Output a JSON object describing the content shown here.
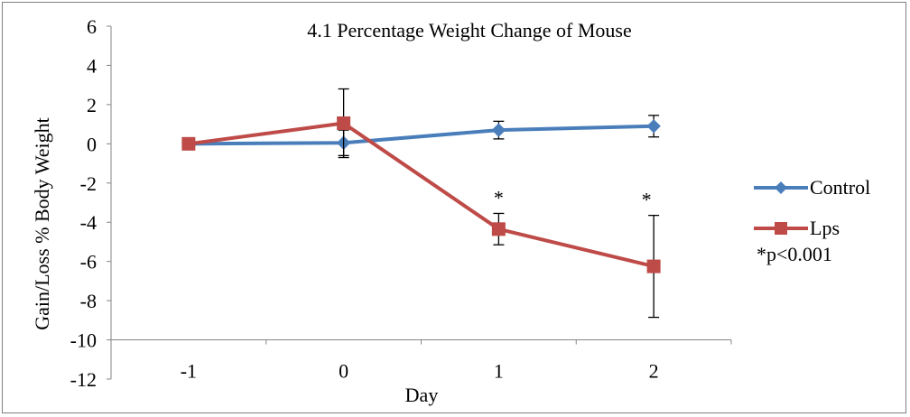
{
  "chart_data": {
    "type": "line",
    "title": "4.1 Percentage Weight Change of Mouse",
    "xlabel": "Day",
    "ylabel": "Gain/Loss % Body Weight",
    "categories": [
      "-1",
      "0",
      "1",
      "2"
    ],
    "ylim": [
      -12,
      6
    ],
    "yticks": [
      6,
      4,
      2,
      0,
      -2,
      -4,
      -6,
      -8,
      -10,
      -12
    ],
    "y_axis_crosses": -10,
    "grid": false,
    "legend_position": "right",
    "series": [
      {
        "name": "Control",
        "color": "#4a7ebb",
        "marker": "diamond",
        "values": [
          0,
          0.05,
          0.7,
          0.9
        ],
        "error": [
          null,
          0.65,
          0.45,
          0.55
        ]
      },
      {
        "name": "Lps",
        "color": "#be4b48",
        "marker": "square",
        "values": [
          0,
          1.05,
          -4.35,
          -6.25
        ],
        "error": [
          null,
          1.75,
          0.8,
          2.6
        ]
      }
    ],
    "annotations": [
      {
        "text": "*",
        "category": "1"
      },
      {
        "text": "*",
        "category": "2"
      }
    ],
    "legend_note": "*p<0.001"
  }
}
